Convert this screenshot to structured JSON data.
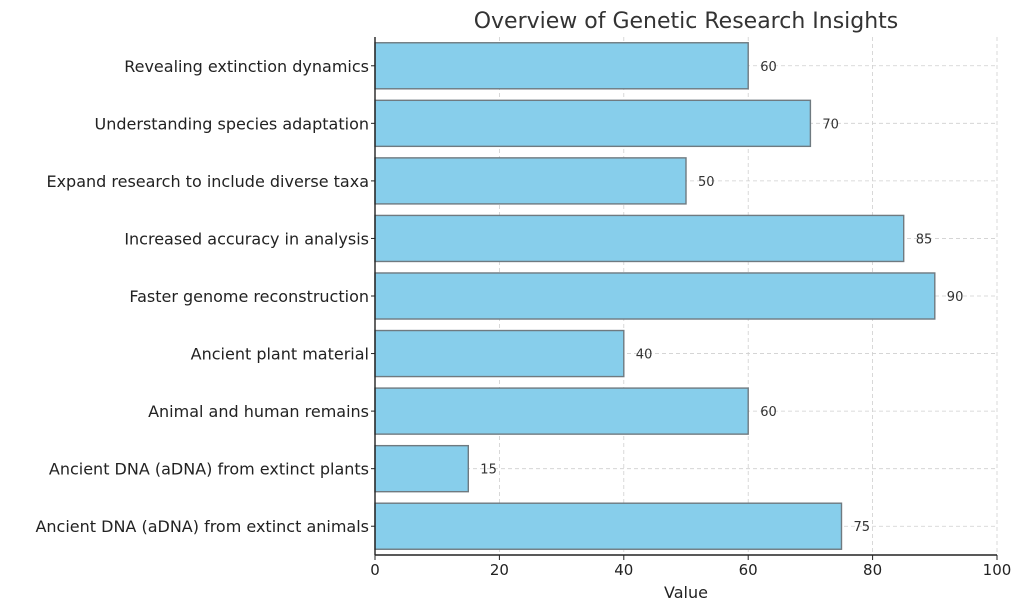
{
  "chart_data": {
    "type": "bar",
    "orientation": "horizontal",
    "title": "Overview of Genetic Research Insights",
    "xlabel": "Value",
    "ylabel": "",
    "xlim": [
      0,
      100
    ],
    "xticks": [
      0,
      20,
      40,
      60,
      80,
      100
    ],
    "grid": true,
    "categories": [
      "Ancient DNA (aDNA) from extinct animals",
      "Ancient DNA (aDNA) from extinct plants",
      "Animal and human remains",
      "Ancient plant material",
      "Faster genome reconstruction",
      "Increased accuracy in analysis",
      "Expand research to include diverse taxa",
      "Understanding species adaptation",
      "Revealing extinction dynamics"
    ],
    "values": [
      75,
      15,
      60,
      40,
      90,
      85,
      50,
      70,
      60
    ],
    "colors": {
      "bar_fill": "#87ceeb",
      "bar_stroke": "#6f7a80",
      "grid": "#cfcfcf",
      "axis": "#222222",
      "text": "#222222",
      "title": "#333333"
    }
  }
}
